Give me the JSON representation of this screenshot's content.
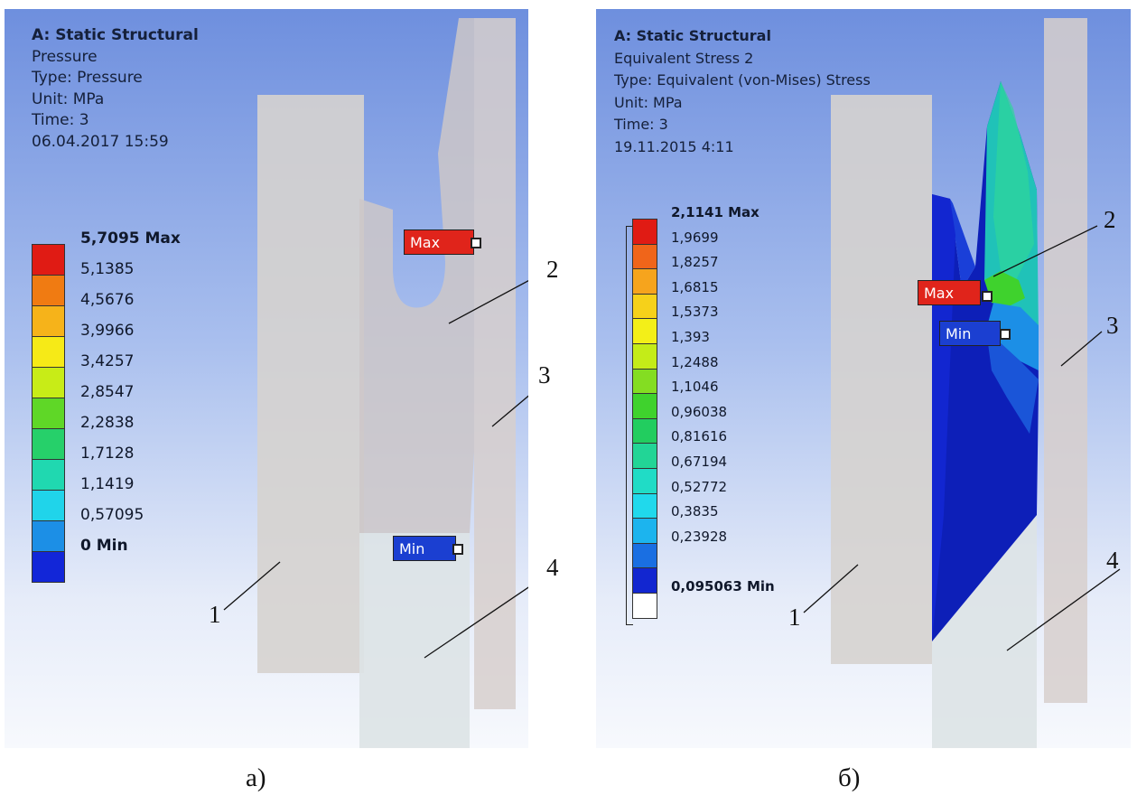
{
  "panel_a": {
    "info": {
      "analysis": "A: Static Structural",
      "result": "Pressure",
      "type": "Type: Pressure",
      "unit": "Unit: MPa",
      "time": "Time: 3",
      "date": "06.04.2017 15:59"
    },
    "legend": {
      "entries": [
        {
          "label": "5,7095 Max",
          "color": "#e01b14",
          "bold": true
        },
        {
          "label": "5,1385",
          "color": "#f07b12"
        },
        {
          "label": "4,5676",
          "color": "#f6b31a"
        },
        {
          "label": "3,9966",
          "color": "#f6ea17"
        },
        {
          "label": "3,4257",
          "color": "#c8ec17"
        },
        {
          "label": "2,8547",
          "color": "#5fd727"
        },
        {
          "label": "2,2838",
          "color": "#26d06a"
        },
        {
          "label": "1,7128",
          "color": "#20d8b0"
        },
        {
          "label": "1,1419",
          "color": "#20d4ea"
        },
        {
          "label": "0,57095",
          "color": "#1c8fe6"
        },
        {
          "label": "0 Min",
          "color": "#1226d8",
          "bold": true
        }
      ]
    },
    "probes": {
      "max_label": "Max",
      "min_label": "Min"
    },
    "callouts": [
      "1",
      "2",
      "3",
      "4"
    ],
    "caption": "а)"
  },
  "panel_b": {
    "info": {
      "analysis": "A: Static Structural",
      "result": "Equivalent Stress 2",
      "type": "Type: Equivalent (von-Mises) Stress",
      "unit": "Unit: MPa",
      "time": "Time: 3",
      "date": "19.11.2015 4:11"
    },
    "legend": {
      "entries": [
        {
          "label": "2,1141 Max",
          "color": "#e01b14",
          "bold": true
        },
        {
          "label": "1,9699",
          "color": "#f0651a"
        },
        {
          "label": "1,8257",
          "color": "#f6a41d"
        },
        {
          "label": "1,6815",
          "color": "#f6d11a"
        },
        {
          "label": "1,5373",
          "color": "#f3ef18"
        },
        {
          "label": "1,393",
          "color": "#c4ec18"
        },
        {
          "label": "1,2488",
          "color": "#84dd22"
        },
        {
          "label": "1,1046",
          "color": "#3fd22d"
        },
        {
          "label": "0,96038",
          "color": "#22cd5f"
        },
        {
          "label": "0,81616",
          "color": "#22d596"
        },
        {
          "label": "0,67194",
          "color": "#20dcc6"
        },
        {
          "label": "0,52772",
          "color": "#20d9ec"
        },
        {
          "label": "0,3835",
          "color": "#1cb4ee"
        },
        {
          "label": "0,23928",
          "color": "#1a6fe2"
        },
        {
          "label": "",
          "color": "#1226d0"
        },
        {
          "label": "0,095063 Min",
          "color": "#ffffff",
          "bold": true
        }
      ]
    },
    "probes": {
      "max_label": "Max",
      "min_label": "Min"
    },
    "callouts": [
      "1",
      "2",
      "3",
      "4"
    ],
    "caption": "б)"
  }
}
